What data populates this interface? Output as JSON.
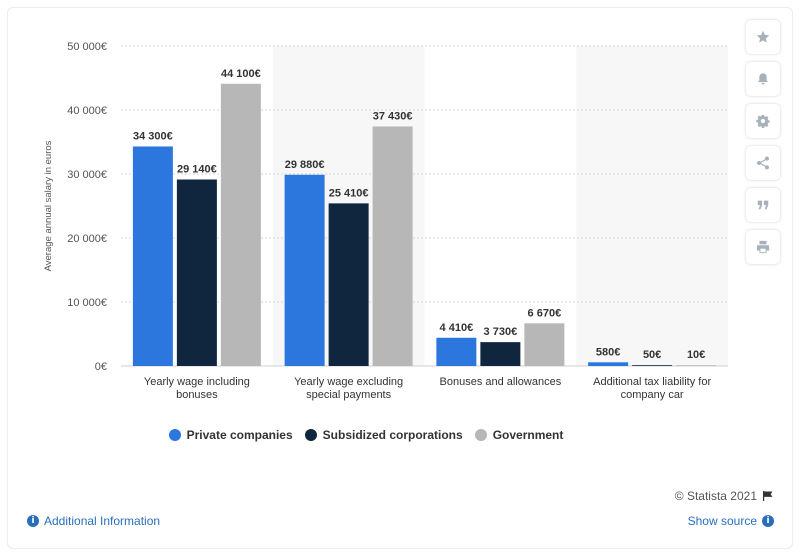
{
  "colors": {
    "private": "#2b77dd",
    "subsidized": "#10263f",
    "government": "#b7b7b7",
    "link": "#2a6ebb"
  },
  "toolbar": {
    "icons": [
      "star-icon",
      "bell-icon",
      "gear-icon",
      "share-icon",
      "quote-icon",
      "print-icon"
    ]
  },
  "chart_data": {
    "type": "bar",
    "title": "",
    "ylabel": "Average annual salary in euros",
    "xlabel": "",
    "ylim": [
      0,
      50000
    ],
    "y_ticks": [
      "0€",
      "10 000€",
      "20 000€",
      "30 000€",
      "40 000€",
      "50 000€"
    ],
    "categories": [
      [
        "Yearly wage including",
        "bonuses"
      ],
      [
        "Yearly wage excluding",
        "special payments"
      ],
      [
        "Bonuses and allowances"
      ],
      [
        "Additional tax liability for",
        "company car"
      ]
    ],
    "series": [
      {
        "name": "Private companies",
        "color": "#2b77dd",
        "values": [
          34300,
          29880,
          4410,
          580
        ],
        "labels": [
          "34 300€",
          "29 880€",
          "4 410€",
          "580€"
        ]
      },
      {
        "name": "Subsidized corporations",
        "color": "#10263f",
        "values": [
          29140,
          25410,
          3730,
          50
        ],
        "labels": [
          "29 140€",
          "25 410€",
          "3 730€",
          "50€"
        ]
      },
      {
        "name": "Government",
        "color": "#b7b7b7",
        "values": [
          44100,
          37430,
          6670,
          10
        ],
        "labels": [
          "44 100€",
          "37 430€",
          "6 670€",
          "10€"
        ]
      }
    ],
    "grid": true,
    "legend": "bottom"
  },
  "footer": {
    "credit": "© Statista 2021",
    "additional_info": "Additional Information",
    "show_source": "Show source"
  }
}
